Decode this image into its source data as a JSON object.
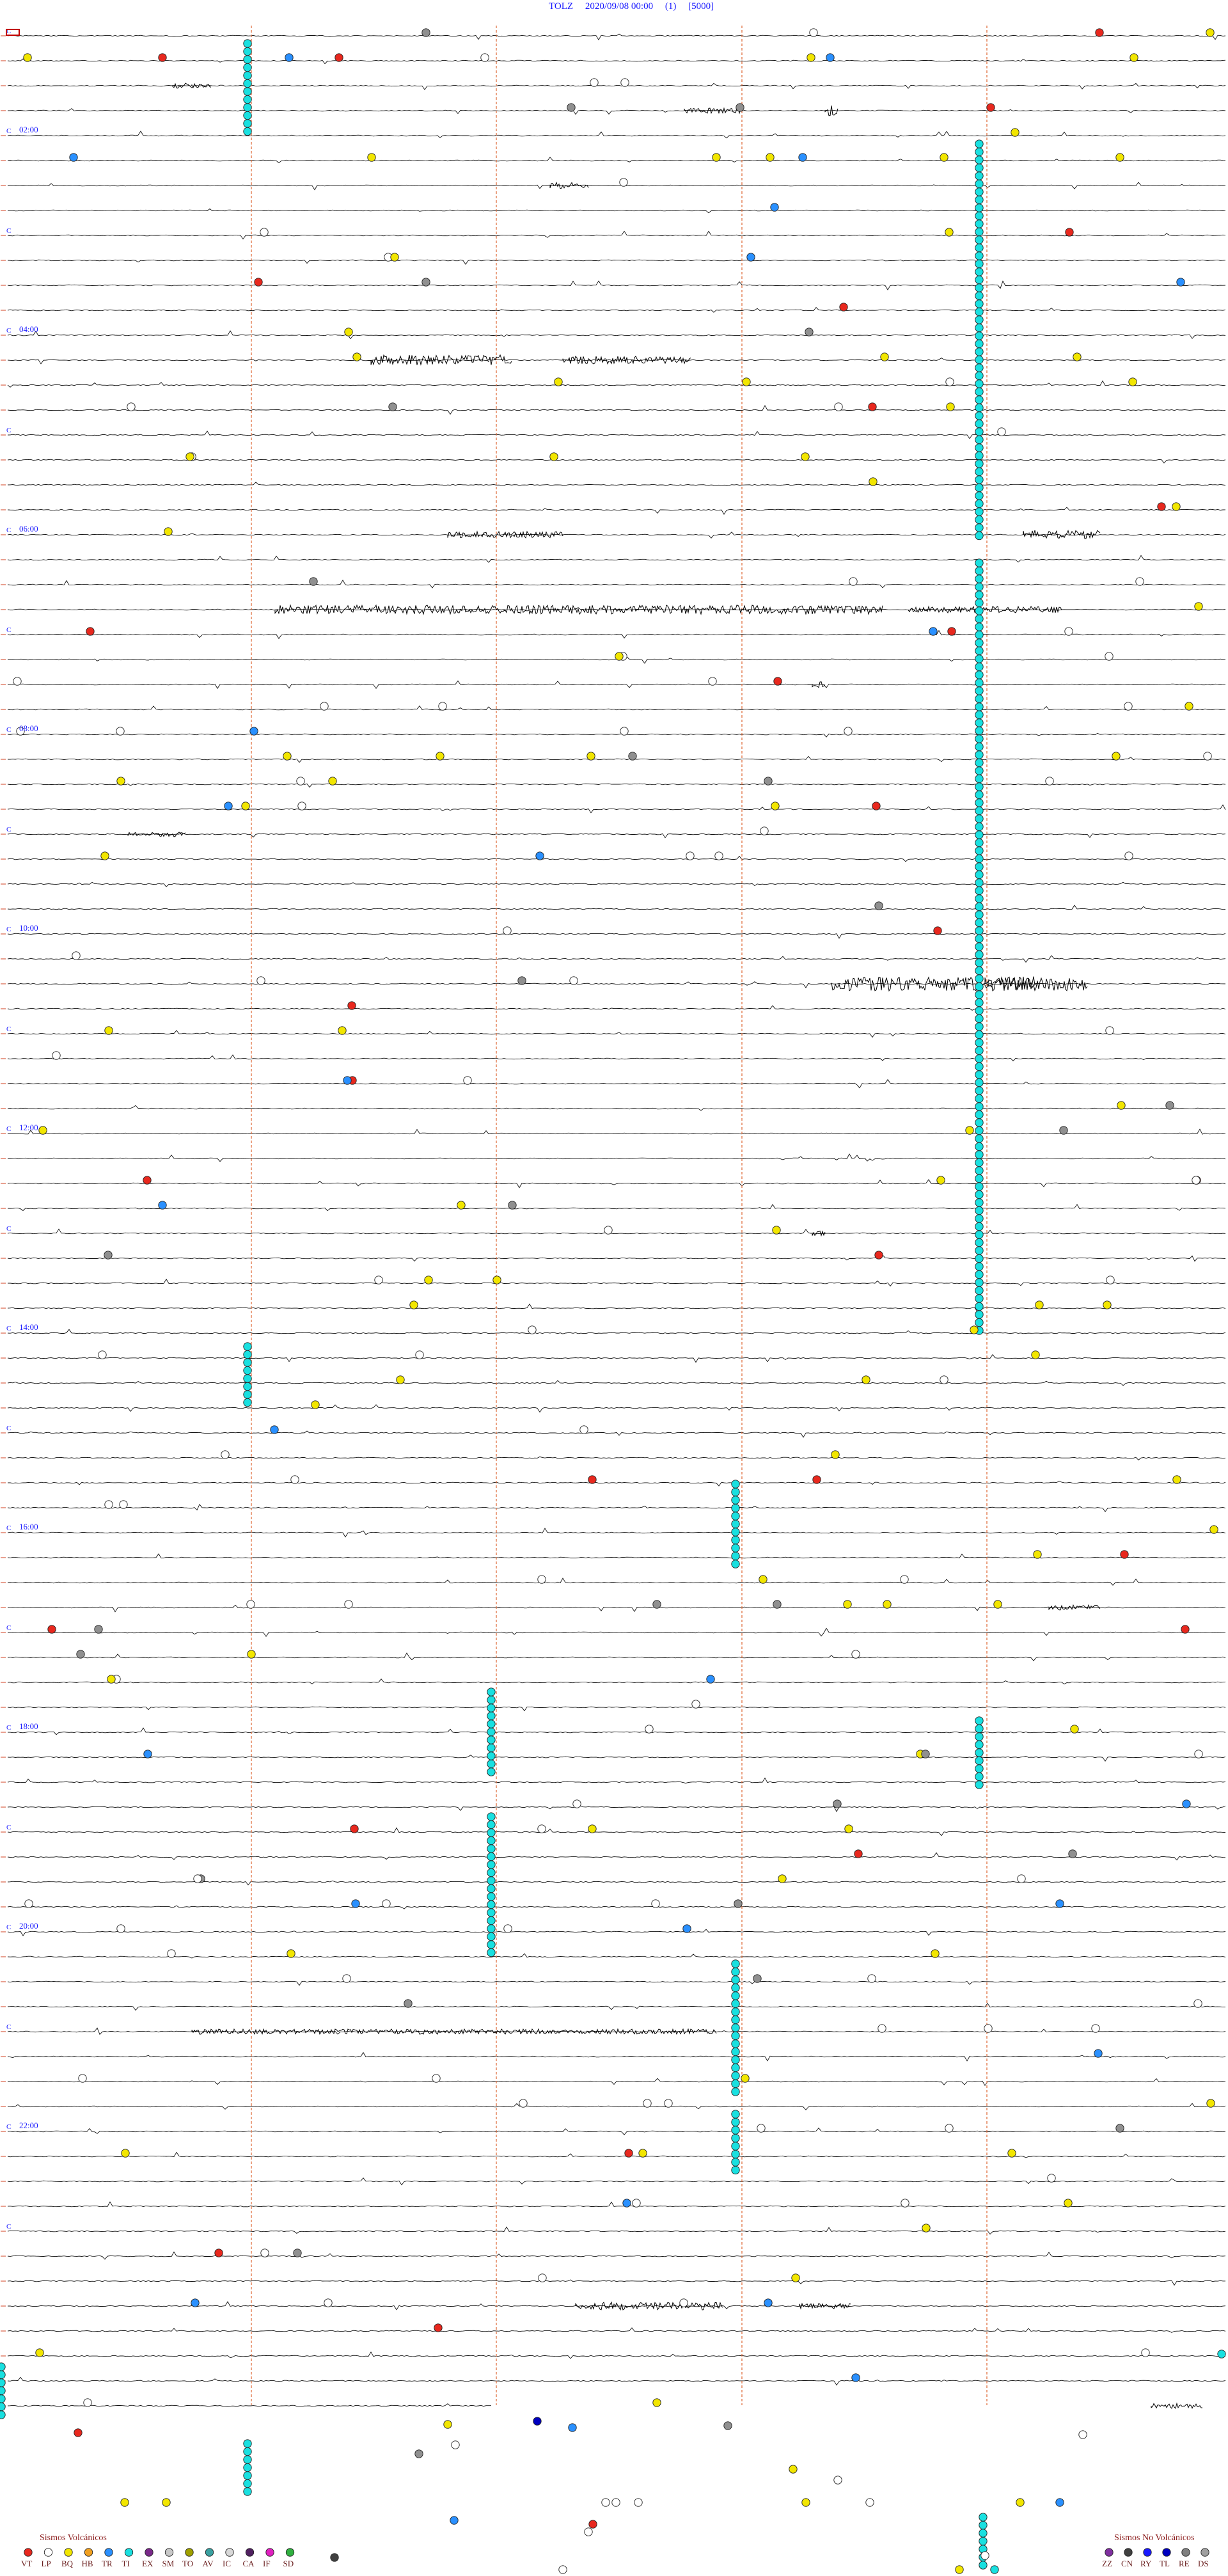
{
  "header": {
    "station": "TOLZ",
    "datetime": "2020/09/08 00:00",
    "component": "(1)",
    "scale": "[5000]"
  },
  "chart_data": {
    "type": "scatter",
    "hour_labels": [
      "02:00",
      "04:00",
      "06:00",
      "08:00",
      "10:00",
      "12:00",
      "14:00",
      "16:00",
      "18:00",
      "20:00",
      "22:00"
    ],
    "legend_volcanic": {
      "title": "Sismos Volcánicos",
      "items": [
        {
          "code": "VT",
          "color": "#e8281e"
        },
        {
          "code": "LP",
          "color": "#ffffff"
        },
        {
          "code": "BQ",
          "color": "#f2e600"
        },
        {
          "code": "HB",
          "color": "#f0a020"
        },
        {
          "code": "TR",
          "color": "#2a90ff"
        },
        {
          "code": "TI",
          "color": "#19e0e0"
        },
        {
          "code": "EX",
          "color": "#7a2a8a"
        },
        {
          "code": "SM",
          "color": "#c8c8c8"
        },
        {
          "code": "TO",
          "color": "#a0a000"
        },
        {
          "code": "AV",
          "color": "#3aa0a0"
        },
        {
          "code": "IC",
          "color": "#d8d8d8"
        },
        {
          "code": "CA",
          "color": "#502060"
        },
        {
          "code": "IF",
          "color": "#e020c0"
        },
        {
          "code": "SD",
          "color": "#30b040"
        }
      ]
    },
    "legend_nonvolcanic": {
      "title": "Sismos No Volcánicos",
      "items": [
        {
          "code": "ZZ",
          "color": "#8030a0"
        },
        {
          "code": "CN",
          "color": "#404040"
        },
        {
          "code": "RY",
          "color": "#1a1aff"
        },
        {
          "code": "TL",
          "color": "#0000c0"
        },
        {
          "code": "RE",
          "color": "#808080"
        },
        {
          "code": "DS",
          "color": "#a0a0a0"
        }
      ]
    }
  }
}
